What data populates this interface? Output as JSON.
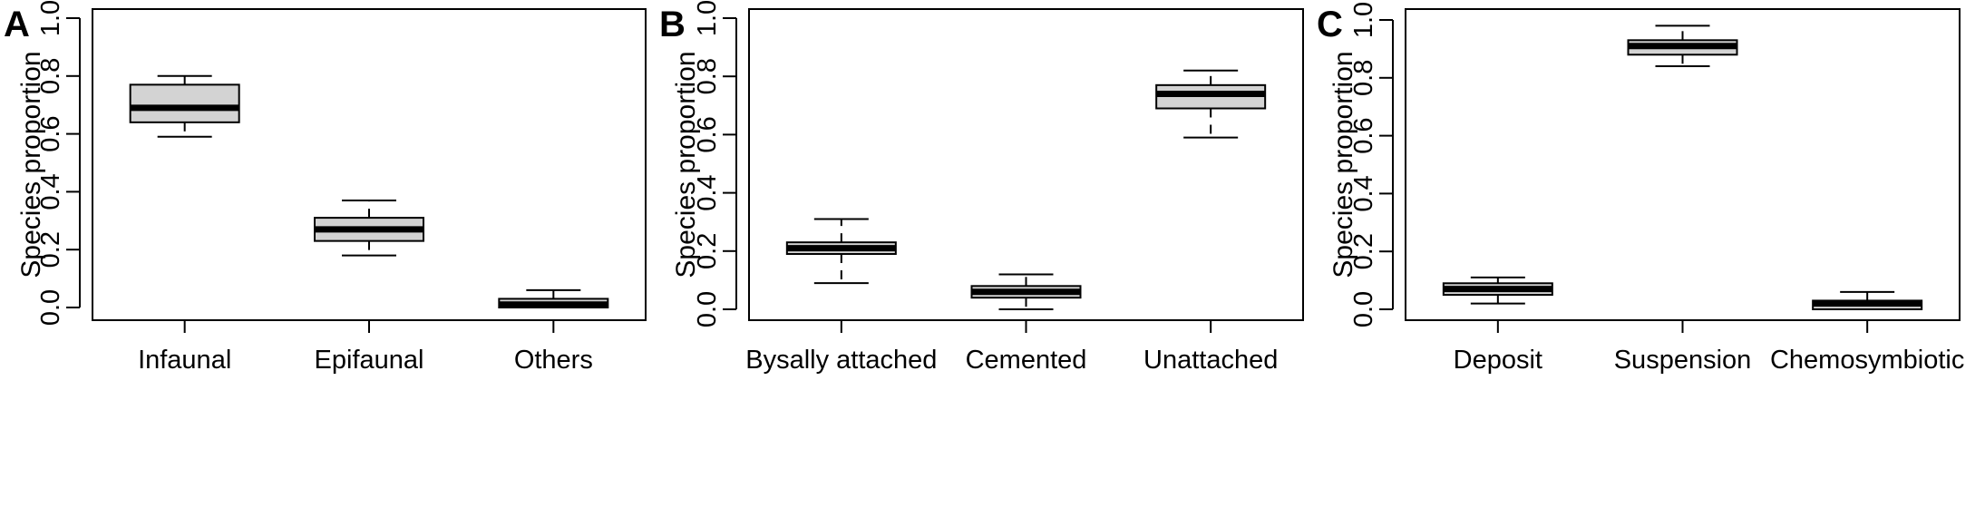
{
  "chart_data": [
    {
      "type": "box",
      "panel": "A",
      "ylabel": "Species proportion",
      "ylim": [
        0,
        1
      ],
      "yticks": [
        "0.0",
        "0.2",
        "0.4",
        "0.6",
        "0.8",
        "1.0"
      ],
      "categories": [
        "Infaunal",
        "Epifaunal",
        "Others"
      ],
      "boxes": [
        {
          "min": 0.59,
          "q1": 0.64,
          "median": 0.69,
          "q3": 0.77,
          "max": 0.8
        },
        {
          "min": 0.18,
          "q1": 0.23,
          "median": 0.27,
          "q3": 0.31,
          "max": 0.37
        },
        {
          "min": 0.0,
          "q1": 0.0,
          "median": 0.01,
          "q3": 0.03,
          "max": 0.06
        }
      ],
      "box_fill": "#d3d3d3",
      "grid": false
    },
    {
      "type": "box",
      "panel": "B",
      "ylabel": "Species proportion",
      "ylim": [
        0,
        1
      ],
      "yticks": [
        "0.0",
        "0.2",
        "0.4",
        "0.6",
        "0.8",
        "1.0"
      ],
      "categories": [
        "Bysally attached",
        "Cemented",
        "Unattached"
      ],
      "boxes": [
        {
          "min": 0.09,
          "q1": 0.19,
          "median": 0.21,
          "q3": 0.23,
          "max": 0.31
        },
        {
          "min": 0.0,
          "q1": 0.04,
          "median": 0.06,
          "q3": 0.08,
          "max": 0.12
        },
        {
          "min": 0.59,
          "q1": 0.69,
          "median": 0.74,
          "q3": 0.77,
          "max": 0.82
        }
      ],
      "box_fill": "#d3d3d3",
      "grid": false
    },
    {
      "type": "box",
      "panel": "C",
      "ylabel": "Species proportion",
      "ylim": [
        0,
        1
      ],
      "yticks": [
        "0.0",
        "0.2",
        "0.4",
        "0.6",
        "0.8",
        "1.0"
      ],
      "categories": [
        "Deposit",
        "Suspension",
        "Chemosymbiotic"
      ],
      "boxes": [
        {
          "min": 0.02,
          "q1": 0.05,
          "median": 0.07,
          "q3": 0.09,
          "max": 0.11
        },
        {
          "min": 0.84,
          "q1": 0.88,
          "median": 0.91,
          "q3": 0.93,
          "max": 0.98
        },
        {
          "min": 0.0,
          "q1": 0.0,
          "median": 0.02,
          "q3": 0.03,
          "max": 0.06
        }
      ],
      "box_fill": "#d3d3d3",
      "grid": false
    }
  ]
}
